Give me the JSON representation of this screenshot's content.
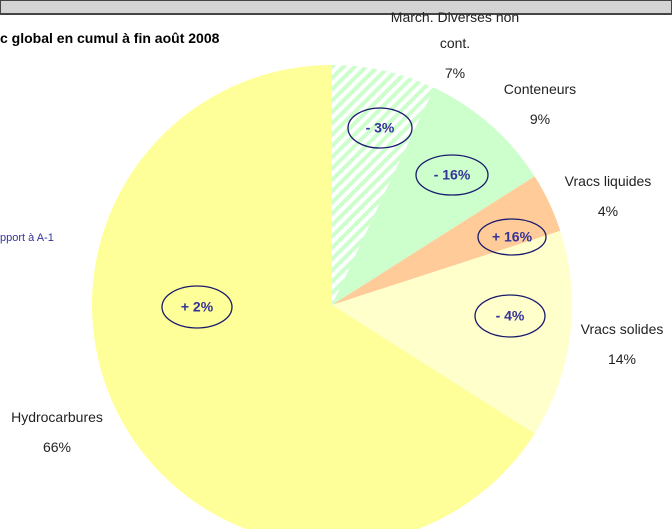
{
  "chart_data": {
    "type": "pie",
    "title": "c global en cumul à fin août 2008",
    "note": "pport à A-1",
    "categories": [
      "March. Diverses non cont.",
      "Conteneurs",
      "Vracs liquides",
      "Vracs solides",
      "Hydrocarbures"
    ],
    "values": [
      7,
      9,
      4,
      14,
      66
    ],
    "value_labels": [
      "7%",
      "9%",
      "4%",
      "14%",
      "66%"
    ],
    "change_labels": [
      "- 3%",
      "- 16%",
      "+ 16%",
      "- 4%",
      "+ 2%"
    ],
    "colors": [
      "#ccffcc",
      "#ccffcc",
      "#ffcc99",
      "#ffffcc",
      "#ffff99"
    ],
    "patterns": [
      "hatch",
      null,
      null,
      null,
      null
    ],
    "start_angle": 0,
    "direction": "clockwise"
  }
}
